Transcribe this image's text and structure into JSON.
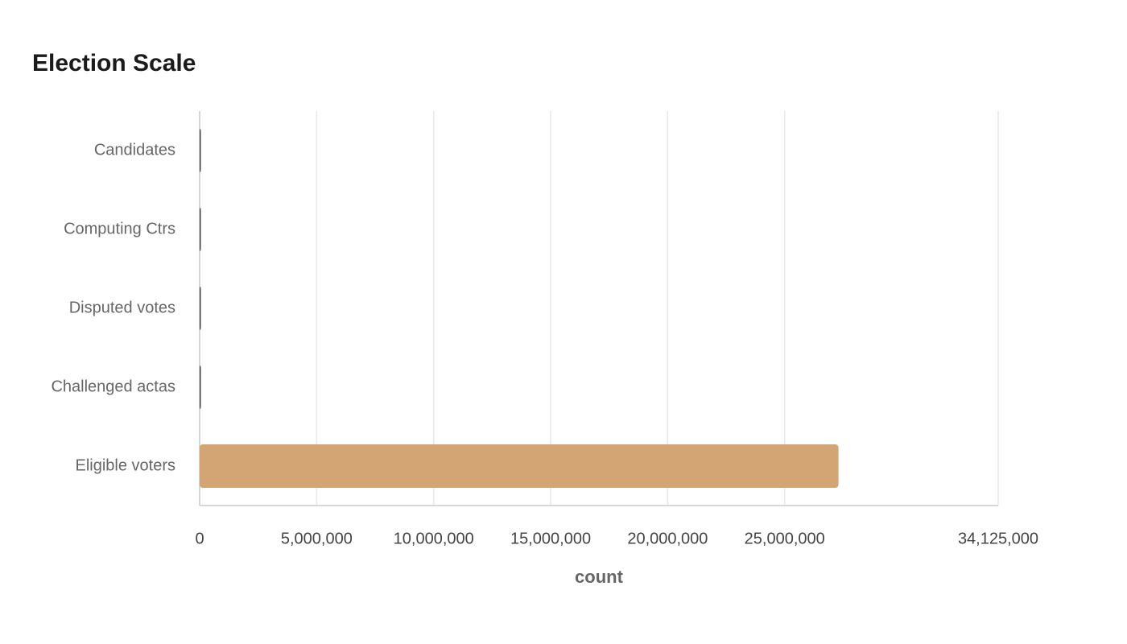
{
  "chart_data": {
    "type": "hbar",
    "title": "Election Scale",
    "categories": [
      "Candidates",
      "Computing Ctrs",
      "Disputed votes",
      "Challenged actas",
      "Eligible voters"
    ],
    "values": [
      18,
      86,
      30000,
      1300,
      27300000
    ],
    "colors": [
      "#444444",
      "#444444",
      "#444444",
      "#444444",
      "#d4a574"
    ],
    "xlabel": "count",
    "xlim": [
      0,
      34125000
    ],
    "xticks": [
      0,
      {
        "value": 5000000,
        "label": "5,000,000"
      },
      {
        "value": 10000000,
        "label": "10,000,000"
      },
      {
        "value": 15000000,
        "label": "15,000,000"
      },
      {
        "value": 20000000,
        "label": "20,000,000"
      },
      {
        "value": 25000000,
        "label": "25,000,000"
      },
      {
        "value": 34125000,
        "label": "34,125,000"
      }
    ],
    "grid": true
  }
}
